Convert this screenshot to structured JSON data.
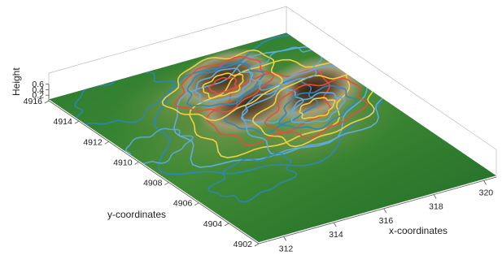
{
  "chart_data": {
    "type": "surface3d",
    "title": "",
    "xlabel": "x-coordinates",
    "ylabel": "y-coordinates",
    "zlabel": "Height",
    "x_ticks": [
      312,
      314,
      316,
      318,
      320
    ],
    "y_ticks": [
      4902,
      4904,
      4906,
      4908,
      4910,
      4912,
      4914,
      4916
    ],
    "z_ticks": [
      0.2,
      0.4,
      0.6
    ],
    "xlim": [
      311,
      320.5
    ],
    "ylim": [
      4902,
      4916
    ],
    "zlim": [
      0,
      0.6
    ],
    "grid": false,
    "surface_colormap": [
      "#1f6b26",
      "#4f8a33",
      "#8d9c5a",
      "#a79f7c",
      "#5e4a2e",
      "#2e1f12"
    ],
    "contour_colors": [
      "#2e86c1",
      "#5dade2",
      "#f4d03f",
      "#e74c3c"
    ],
    "peaks": [
      {
        "x": 318.2,
        "y": 4910.5,
        "height": 0.6
      },
      {
        "x": 316.0,
        "y": 4911.0,
        "height": 0.5
      },
      {
        "x": 316.4,
        "y": 4913.3,
        "height": 0.45
      }
    ]
  }
}
